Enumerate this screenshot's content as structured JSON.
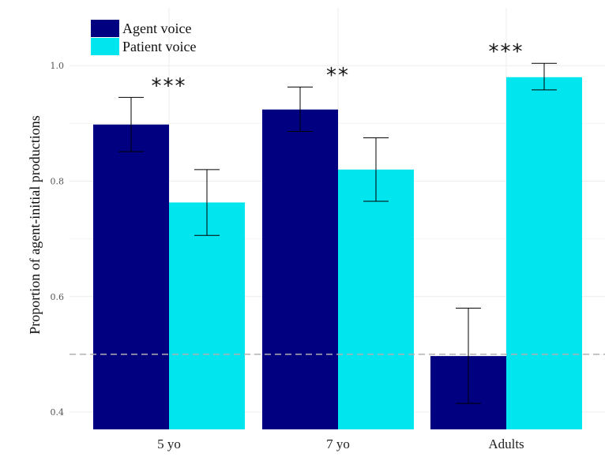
{
  "chart_data": {
    "type": "bar",
    "title": "",
    "xlabel": "",
    "ylabel": "Proportion of agent-initial productions",
    "ylim": [
      0.37,
      1.1
    ],
    "yticks": [
      "0.4",
      "0.6",
      "0.8",
      "1.0"
    ],
    "categories": [
      "5 yo",
      "7 yo",
      "Adults"
    ],
    "series": [
      {
        "name": "Agent voice",
        "color": "#000080",
        "values": [
          0.898,
          0.924,
          0.497
        ],
        "err_low": [
          0.851,
          0.886,
          0.415
        ],
        "err_high": [
          0.945,
          0.963,
          0.58
        ]
      },
      {
        "name": "Patient voice",
        "color": "#00E5EE",
        "values": [
          0.763,
          0.82,
          0.98
        ],
        "err_low": [
          0.706,
          0.765,
          0.958
        ],
        "err_high": [
          0.82,
          0.875,
          1.004
        ]
      }
    ],
    "significance": [
      "***",
      "**",
      "***"
    ],
    "reference_line": 0.5,
    "grid": true,
    "legend_position": "top-left"
  }
}
